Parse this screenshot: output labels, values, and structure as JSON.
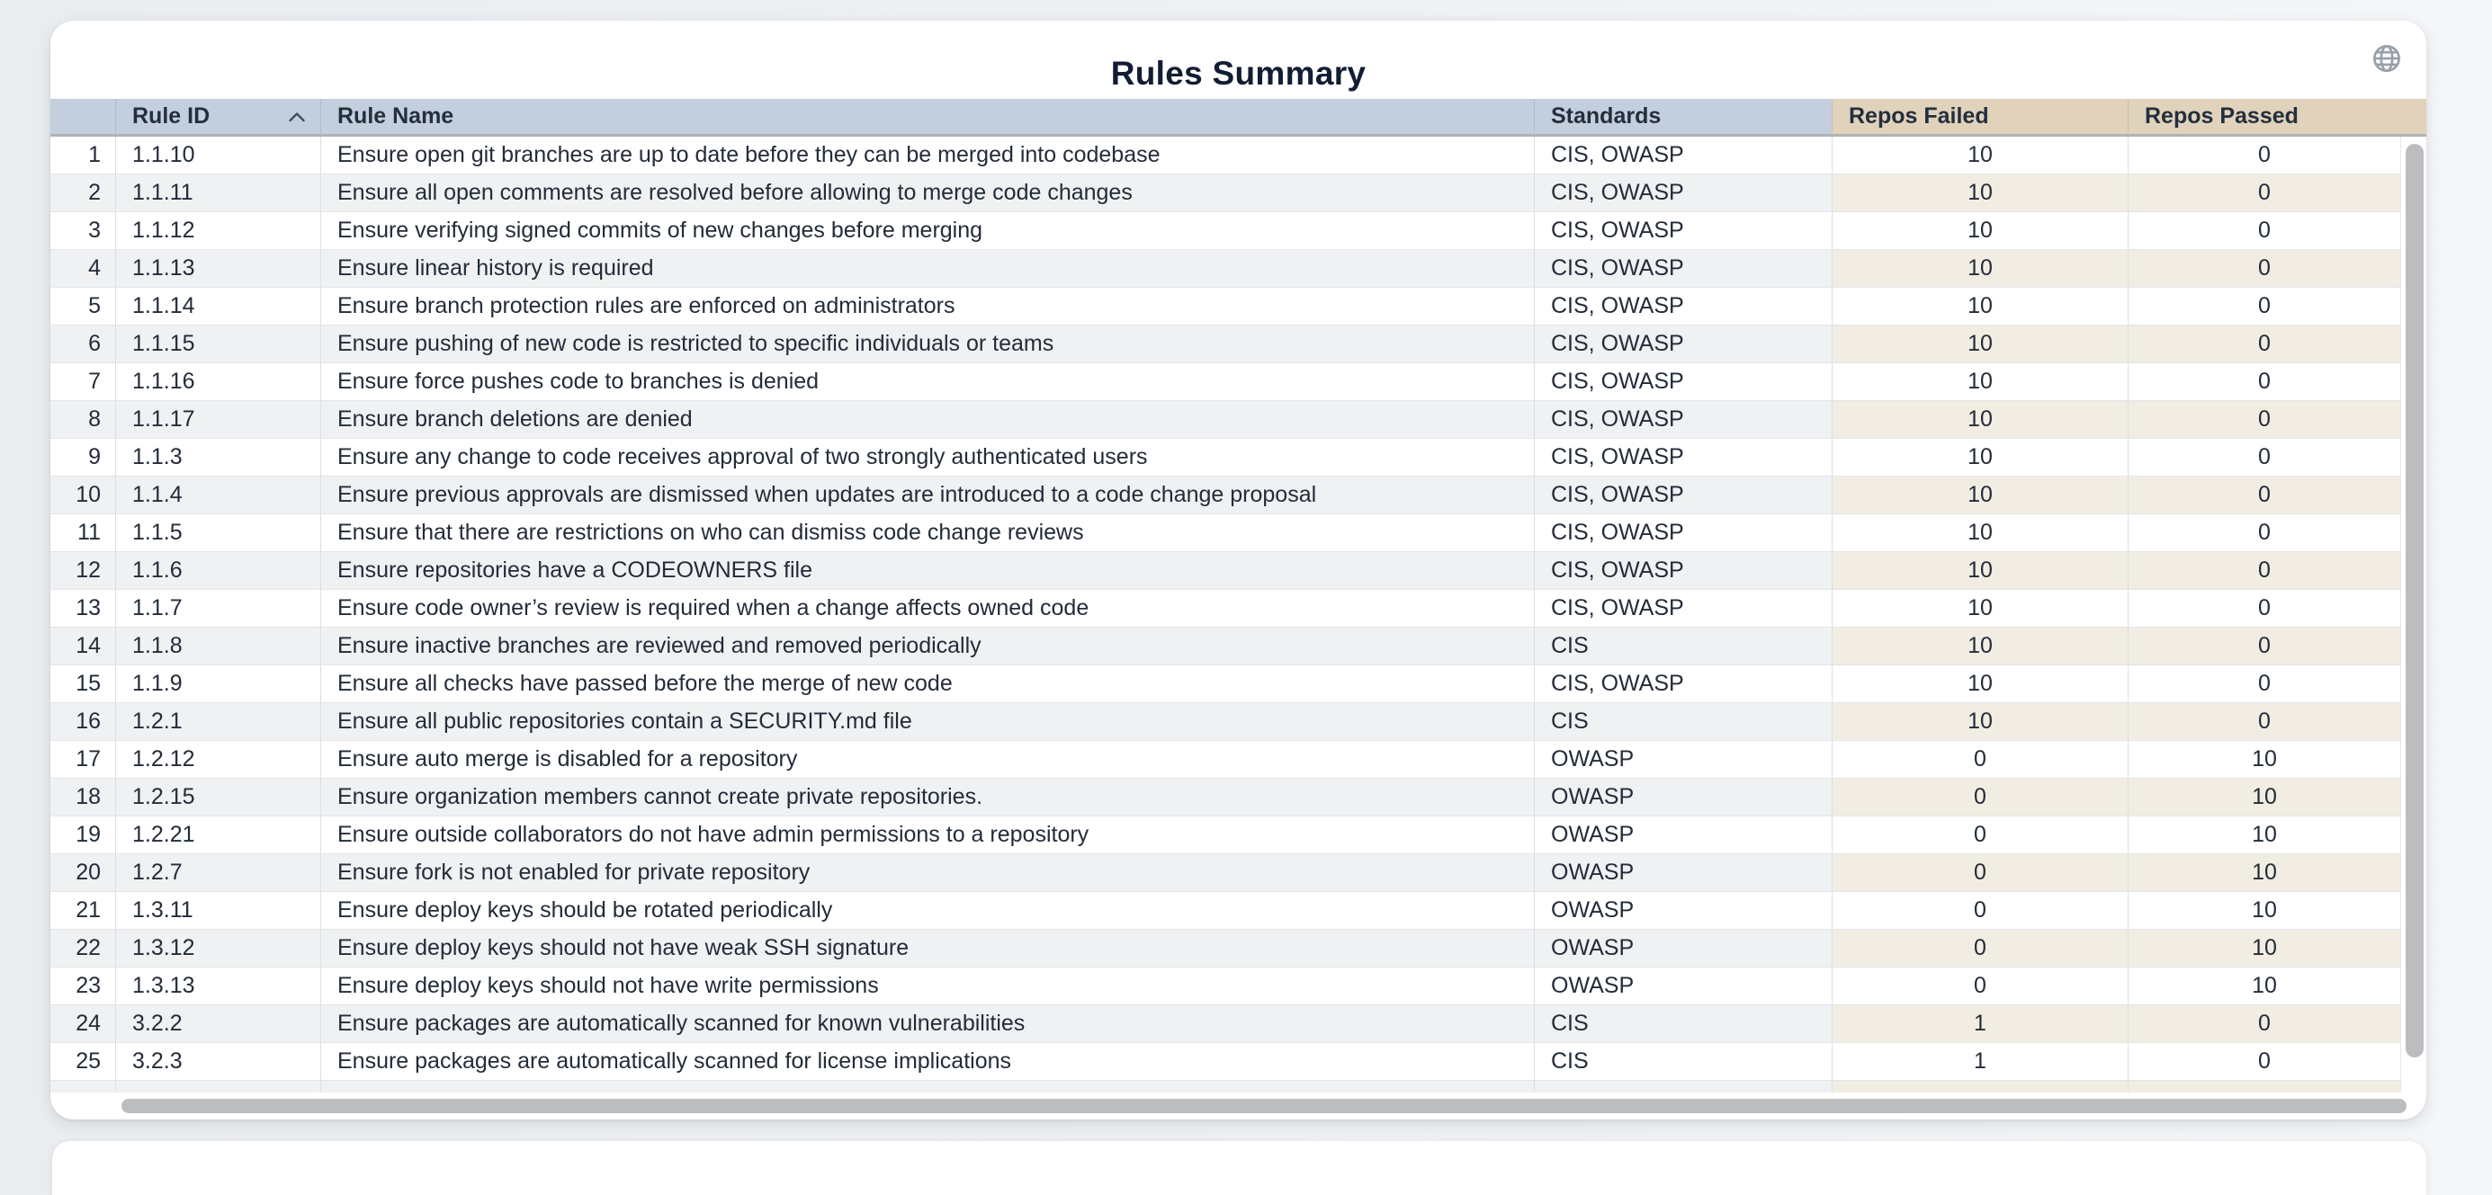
{
  "header": {
    "title": "Rules Summary"
  },
  "icons": {
    "top_right": "globe-icon",
    "rule_id_sort": "chevron-up-icon"
  },
  "colors": {
    "header_blue": "#c3cfdd",
    "header_tan": "#e0d2bb",
    "stripe_gray": "#eff1f2",
    "stripe_tan": "#f2ede2",
    "card_bg": "#ffffff",
    "page_bg": "#eef0f3",
    "title_text": "#121d33",
    "body_text": "#232c39",
    "scrollbar": "#bcbdbf",
    "header_border": "#aeb4ba",
    "row_border": "#e3e5e8"
  },
  "table": {
    "sort": {
      "column": "rule_id",
      "direction": "asc"
    },
    "columns": [
      {
        "key": "index",
        "label": ""
      },
      {
        "key": "rule_id",
        "label": "Rule ID"
      },
      {
        "key": "rule_name",
        "label": "Rule Name"
      },
      {
        "key": "standards",
        "label": "Standards"
      },
      {
        "key": "repos_failed",
        "label": "Repos Failed"
      },
      {
        "key": "repos_passed",
        "label": "Repos Passed"
      }
    ],
    "rows": [
      {
        "index": "1",
        "rule_id": "1.1.10",
        "rule_name": "Ensure open git branches are up to date before they can be merged into codebase",
        "standards": "CIS, OWASP",
        "repos_failed": "10",
        "repos_passed": "0"
      },
      {
        "index": "2",
        "rule_id": "1.1.11",
        "rule_name": "Ensure all open comments are resolved before allowing to merge code changes",
        "standards": "CIS, OWASP",
        "repos_failed": "10",
        "repos_passed": "0"
      },
      {
        "index": "3",
        "rule_id": "1.1.12",
        "rule_name": "Ensure verifying signed commits of new changes before merging",
        "standards": "CIS, OWASP",
        "repos_failed": "10",
        "repos_passed": "0"
      },
      {
        "index": "4",
        "rule_id": "1.1.13",
        "rule_name": "Ensure linear history is required",
        "standards": "CIS, OWASP",
        "repos_failed": "10",
        "repos_passed": "0"
      },
      {
        "index": "5",
        "rule_id": "1.1.14",
        "rule_name": "Ensure branch protection rules are enforced on administrators",
        "standards": "CIS, OWASP",
        "repos_failed": "10",
        "repos_passed": "0"
      },
      {
        "index": "6",
        "rule_id": "1.1.15",
        "rule_name": "Ensure pushing of new code is restricted to specific individuals or teams",
        "standards": "CIS, OWASP",
        "repos_failed": "10",
        "repos_passed": "0"
      },
      {
        "index": "7",
        "rule_id": "1.1.16",
        "rule_name": "Ensure force pushes code to branches is denied",
        "standards": "CIS, OWASP",
        "repos_failed": "10",
        "repos_passed": "0"
      },
      {
        "index": "8",
        "rule_id": "1.1.17",
        "rule_name": "Ensure branch deletions are denied",
        "standards": "CIS, OWASP",
        "repos_failed": "10",
        "repos_passed": "0"
      },
      {
        "index": "9",
        "rule_id": "1.1.3",
        "rule_name": "Ensure any change to code receives approval of two strongly authenticated users",
        "standards": "CIS, OWASP",
        "repos_failed": "10",
        "repos_passed": "0"
      },
      {
        "index": "10",
        "rule_id": "1.1.4",
        "rule_name": "Ensure previous approvals are dismissed when updates are introduced to a code change proposal",
        "standards": "CIS, OWASP",
        "repos_failed": "10",
        "repos_passed": "0"
      },
      {
        "index": "11",
        "rule_id": "1.1.5",
        "rule_name": "Ensure that there are restrictions on who can dismiss code change reviews",
        "standards": "CIS, OWASP",
        "repos_failed": "10",
        "repos_passed": "0"
      },
      {
        "index": "12",
        "rule_id": "1.1.6",
        "rule_name": "Ensure repositories have a CODEOWNERS file",
        "standards": "CIS, OWASP",
        "repos_failed": "10",
        "repos_passed": "0"
      },
      {
        "index": "13",
        "rule_id": "1.1.7",
        "rule_name": "Ensure code owner’s review is required when a change affects owned code",
        "standards": "CIS, OWASP",
        "repos_failed": "10",
        "repos_passed": "0"
      },
      {
        "index": "14",
        "rule_id": "1.1.8",
        "rule_name": "Ensure inactive branches are reviewed and removed periodically",
        "standards": "CIS",
        "repos_failed": "10",
        "repos_passed": "0"
      },
      {
        "index": "15",
        "rule_id": "1.1.9",
        "rule_name": "Ensure all checks have passed before the merge of new code",
        "standards": "CIS, OWASP",
        "repos_failed": "10",
        "repos_passed": "0"
      },
      {
        "index": "16",
        "rule_id": "1.2.1",
        "rule_name": "Ensure all public repositories contain a SECURITY.md file",
        "standards": "CIS",
        "repos_failed": "10",
        "repos_passed": "0"
      },
      {
        "index": "17",
        "rule_id": "1.2.12",
        "rule_name": "Ensure auto merge is disabled for a repository",
        "standards": "OWASP",
        "repos_failed": "0",
        "repos_passed": "10"
      },
      {
        "index": "18",
        "rule_id": "1.2.15",
        "rule_name": "Ensure organization members cannot create private repositories.",
        "standards": "OWASP",
        "repos_failed": "0",
        "repos_passed": "10"
      },
      {
        "index": "19",
        "rule_id": "1.2.21",
        "rule_name": "Ensure outside collaborators do not have admin permissions to a repository",
        "standards": "OWASP",
        "repos_failed": "0",
        "repos_passed": "10"
      },
      {
        "index": "20",
        "rule_id": "1.2.7",
        "rule_name": "Ensure fork is not enabled for private repository",
        "standards": "OWASP",
        "repos_failed": "0",
        "repos_passed": "10"
      },
      {
        "index": "21",
        "rule_id": "1.3.11",
        "rule_name": "Ensure deploy keys should be rotated periodically",
        "standards": "OWASP",
        "repos_failed": "0",
        "repos_passed": "10"
      },
      {
        "index": "22",
        "rule_id": "1.3.12",
        "rule_name": "Ensure deploy keys should not have weak SSH signature",
        "standards": "OWASP",
        "repos_failed": "0",
        "repos_passed": "10"
      },
      {
        "index": "23",
        "rule_id": "1.3.13",
        "rule_name": "Ensure deploy keys should not have write permissions",
        "standards": "OWASP",
        "repos_failed": "0",
        "repos_passed": "10"
      },
      {
        "index": "24",
        "rule_id": "3.2.2",
        "rule_name": "Ensure packages are automatically scanned for known vulnerabilities",
        "standards": "CIS",
        "repos_failed": "1",
        "repos_passed": "0"
      },
      {
        "index": "25",
        "rule_id": "3.2.3",
        "rule_name": "Ensure packages are automatically scanned for license implications",
        "standards": "CIS",
        "repos_failed": "1",
        "repos_passed": "0"
      }
    ]
  }
}
